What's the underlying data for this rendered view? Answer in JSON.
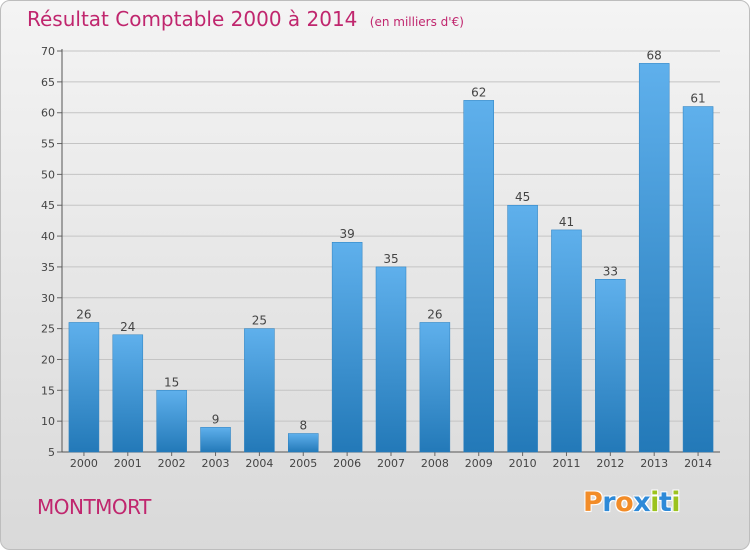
{
  "header": {
    "title": "Résultat Comptable 2000 à 2014",
    "subtitle": "(en milliers d'€)"
  },
  "footer": {
    "commune": "MONTMORT",
    "logo_text": "Proxiti"
  },
  "colors": {
    "accent": "#c0266e",
    "bar_top": "#5fb0ec",
    "bar_bottom": "#2379b8",
    "logo_letters": [
      "#f28c28",
      "#2e8ad8",
      "#f28c28",
      "#2e8ad8",
      "#9cc31e",
      "#2e8ad8",
      "#9cc31e"
    ]
  },
  "chart_data": {
    "type": "bar",
    "title": "Résultat Comptable 2000 à 2014",
    "subtitle": "(en milliers d'€)",
    "xlabel": "",
    "ylabel": "",
    "categories": [
      "2000",
      "2001",
      "2002",
      "2003",
      "2004",
      "2005",
      "2006",
      "2007",
      "2008",
      "2009",
      "2010",
      "2011",
      "2012",
      "2013",
      "2014"
    ],
    "values": [
      26,
      24,
      15,
      9,
      25,
      8,
      39,
      35,
      26,
      62,
      45,
      41,
      33,
      68,
      61
    ],
    "ylim": [
      5,
      70
    ],
    "yticks": [
      5,
      10,
      15,
      20,
      25,
      30,
      35,
      40,
      45,
      50,
      55,
      60,
      65,
      70
    ],
    "grid": true
  }
}
